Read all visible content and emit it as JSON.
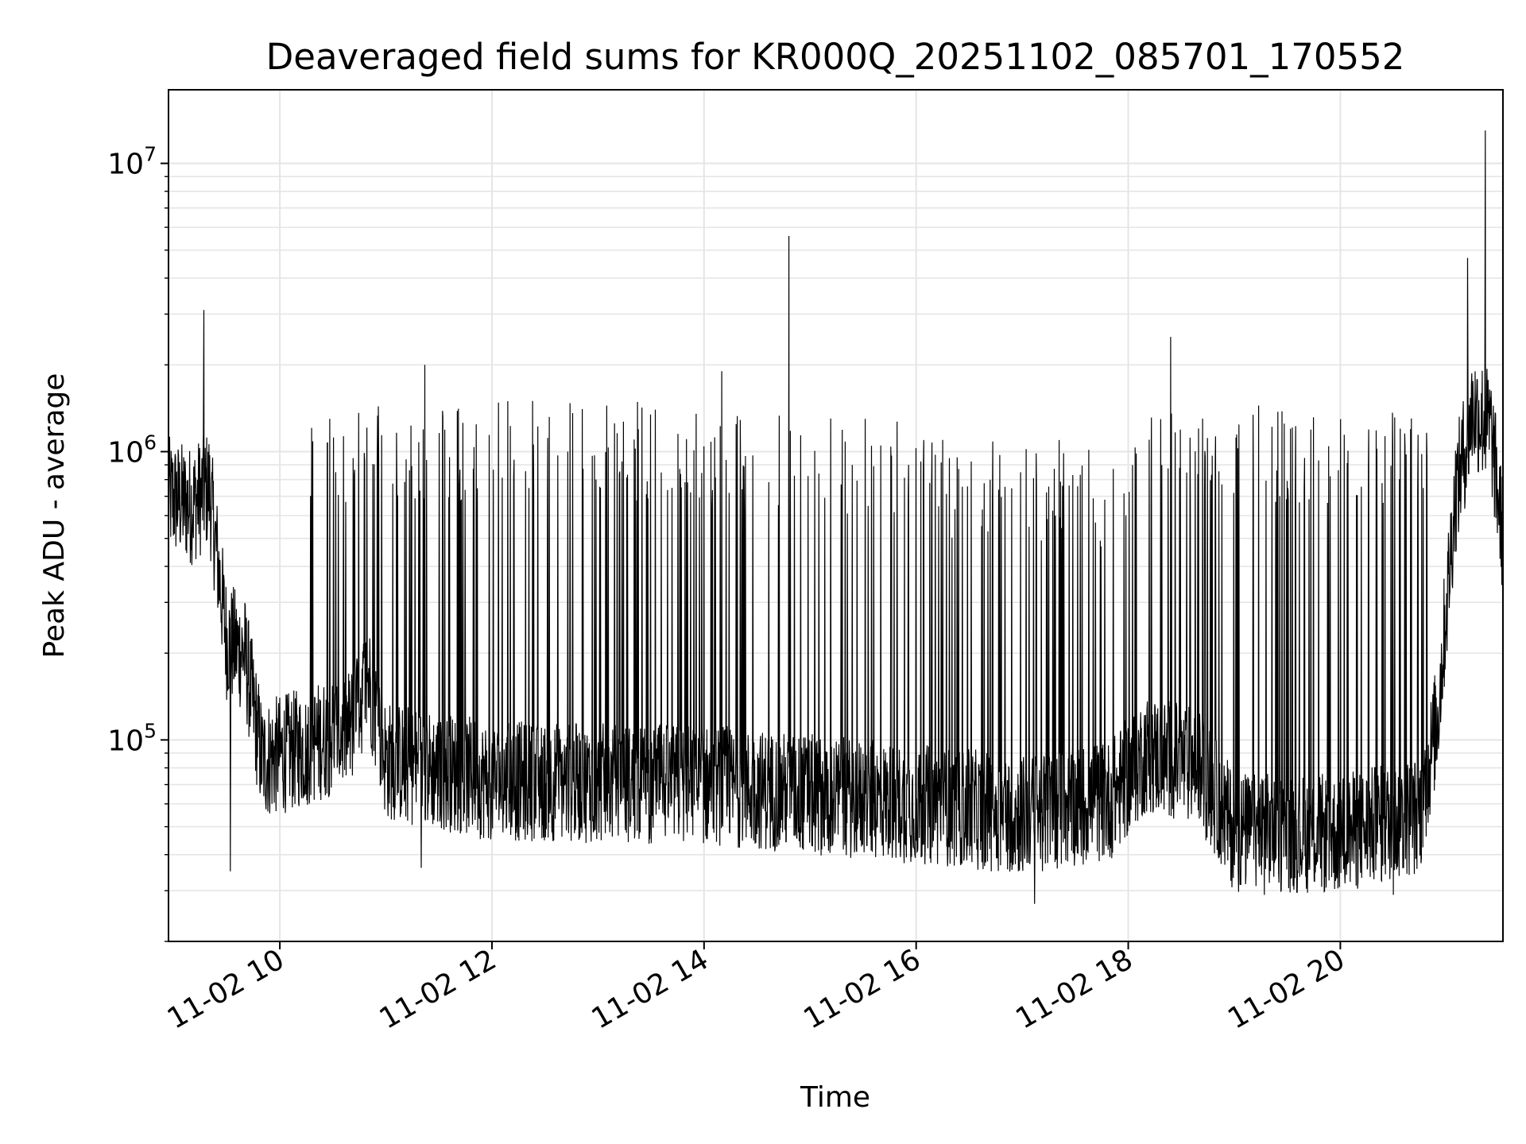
{
  "chart_data": {
    "type": "line",
    "title": "Deaveraged field sums for KR000Q_20251102_085701_170552",
    "xlabel": "Time",
    "ylabel": "Peak ADU - average",
    "yscale": "log",
    "ylim": [
      20000,
      18000000
    ],
    "xlim": [
      "2025-11-02 08:57",
      "2025-11-02 21:32"
    ],
    "x_ticks": [
      "2025-11-02 10:00",
      "2025-11-02 12:00",
      "2025-11-02 14:00",
      "2025-11-02 16:00",
      "2025-11-02 18:00",
      "2025-11-02 20:00"
    ],
    "x_tick_labels": [
      "11-02 10",
      "11-02 12",
      "11-02 14",
      "11-02 16",
      "11-02 18",
      "11-02 20"
    ],
    "y_tick_values": [
      100000,
      1000000,
      10000000
    ],
    "y_tick_labels": [
      {
        "base": "10",
        "exp": "5"
      },
      {
        "base": "10",
        "exp": "6"
      },
      {
        "base": "10",
        "exp": "7"
      }
    ],
    "grid": true,
    "line_color": "#000000",
    "grid_color": "#e5e5e5",
    "baseline": [
      {
        "t": "2025-11-02 08:57",
        "v": 700000
      },
      {
        "t": "2025-11-02 09:10",
        "v": 650000
      },
      {
        "t": "2025-11-02 09:20",
        "v": 750000
      },
      {
        "t": "2025-11-02 09:30",
        "v": 220000
      },
      {
        "t": "2025-11-02 09:40",
        "v": 200000
      },
      {
        "t": "2025-11-02 09:50",
        "v": 85000
      },
      {
        "t": "2025-11-02 10:15",
        "v": 95000
      },
      {
        "t": "2025-11-02 10:40",
        "v": 110000
      },
      {
        "t": "2025-11-02 10:50",
        "v": 165000
      },
      {
        "t": "2025-11-02 11:00",
        "v": 85000
      },
      {
        "t": "2025-11-02 12:00",
        "v": 72000
      },
      {
        "t": "2025-11-02 14:00",
        "v": 70000
      },
      {
        "t": "2025-11-02 16:00",
        "v": 60000
      },
      {
        "t": "2025-11-02 17:00",
        "v": 55000
      },
      {
        "t": "2025-11-02 17:50",
        "v": 62000
      },
      {
        "t": "2025-11-02 18:10",
        "v": 90000
      },
      {
        "t": "2025-11-02 18:40",
        "v": 80000
      },
      {
        "t": "2025-11-02 19:00",
        "v": 48000
      },
      {
        "t": "2025-11-02 20:00",
        "v": 47000
      },
      {
        "t": "2025-11-02 20:45",
        "v": 55000
      },
      {
        "t": "2025-11-02 20:55",
        "v": 120000
      },
      {
        "t": "2025-11-02 21:05",
        "v": 700000
      },
      {
        "t": "2025-11-02 21:15",
        "v": 1400000
      },
      {
        "t": "2025-11-02 21:25",
        "v": 1200000
      },
      {
        "t": "2025-11-02 21:32",
        "v": 500000
      }
    ],
    "spike_bands": [
      {
        "start": "2025-11-02 10:15",
        "end": "2025-11-02 12:00",
        "peak": 1450000
      },
      {
        "start": "2025-11-02 12:00",
        "end": "2025-11-02 14:00",
        "peak": 1500000
      },
      {
        "start": "2025-11-02 14:00",
        "end": "2025-11-02 16:00",
        "peak": 1350000
      },
      {
        "start": "2025-11-02 16:00",
        "end": "2025-11-02 17:30",
        "peak": 1100000
      },
      {
        "start": "2025-11-02 17:30",
        "end": "2025-11-02 18:00",
        "peak": 1050000
      },
      {
        "start": "2025-11-02 18:00",
        "end": "2025-11-02 20:50",
        "peak": 1450000
      }
    ],
    "notable_points": [
      {
        "t": "2025-11-02 09:17",
        "v": 3100000
      },
      {
        "t": "2025-11-02 11:22",
        "v": 2000000
      },
      {
        "t": "2025-11-02 14:10",
        "v": 1900000
      },
      {
        "t": "2025-11-02 14:48",
        "v": 5600000
      },
      {
        "t": "2025-11-02 18:24",
        "v": 2500000
      },
      {
        "t": "2025-11-02 21:12",
        "v": 4700000
      },
      {
        "t": "2025-11-02 21:22",
        "v": 13000000
      },
      {
        "t": "2025-11-02 09:32",
        "v": 35000
      },
      {
        "t": "2025-11-02 11:20",
        "v": 36000
      },
      {
        "t": "2025-11-02 17:07",
        "v": 27000
      },
      {
        "t": "2025-11-02 19:17",
        "v": 29000
      },
      {
        "t": "2025-11-02 20:30",
        "v": 29000
      }
    ]
  }
}
